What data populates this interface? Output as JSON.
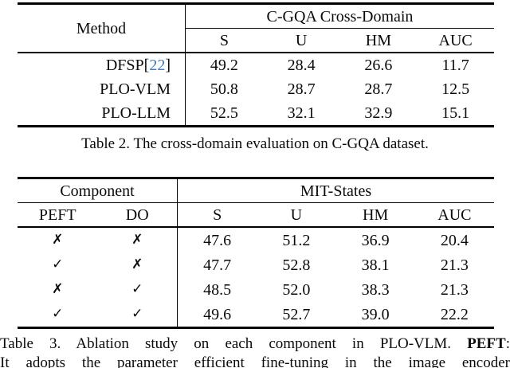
{
  "colors": {
    "citation_blue": "#3e7dbf",
    "text": "#0a0a0a",
    "rule": "#000000"
  },
  "table2": {
    "method_header": "Method",
    "span_header": "C-GQA Cross-Domain",
    "metrics": [
      "S",
      "U",
      "HM",
      "AUC"
    ],
    "rows": [
      {
        "method": "DFSP ",
        "cite_open": "[",
        "cite_num": "22",
        "cite_close": "]",
        "values": [
          "49.2",
          "28.4",
          "26.6",
          "11.7"
        ]
      },
      {
        "method": "PLO-VLM",
        "values": [
          "50.8",
          "28.7",
          "28.7",
          "12.5"
        ]
      },
      {
        "method": "PLO-LLM",
        "values": [
          "52.5",
          "32.1",
          "32.9",
          "15.1"
        ]
      }
    ],
    "caption": "Table 2. The cross-domain evaluation on C-GQA dataset."
  },
  "table3": {
    "group_left": "Component",
    "group_right": "MIT-States",
    "sub_headers": [
      "PEFT",
      "DO"
    ],
    "metrics": [
      "S",
      "U",
      "HM",
      "AUC"
    ],
    "rows": [
      {
        "peft": "✗",
        "do": "✗",
        "values": [
          "47.6",
          "51.2",
          "36.9",
          "20.4"
        ]
      },
      {
        "peft": "✓",
        "do": "✗",
        "values": [
          "47.7",
          "52.8",
          "38.1",
          "21.3"
        ]
      },
      {
        "peft": "✗",
        "do": "✓",
        "values": [
          "48.5",
          "52.0",
          "38.3",
          "21.3"
        ]
      },
      {
        "peft": "✓",
        "do": "✓",
        "values": [
          "49.6",
          "52.7",
          "39.0",
          "22.2"
        ]
      }
    ],
    "caption_line1_prefix": "Table 3. Ablation study on each component in PLO-VLM. ",
    "caption_line1_bold": "PEFT",
    "caption_line1_suffix": ":",
    "caption_line2": "It adopts the parameter efficient fine-tuning in the image encoder"
  }
}
